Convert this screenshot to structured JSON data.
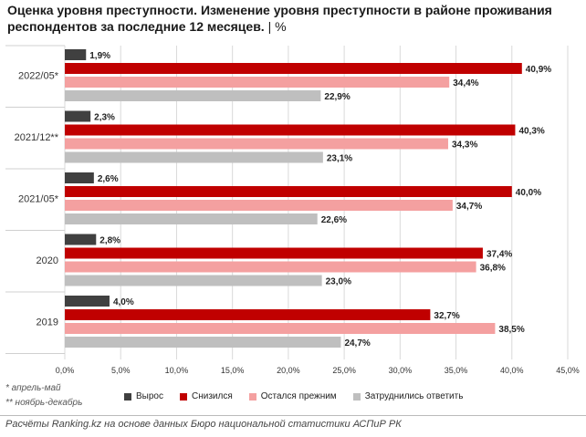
{
  "title_main": "Оценка уровня преступности. Изменение уровня преступности в районе проживания респондентов за последние 12 месяцев.",
  "title_sep": "|",
  "title_unit": "%",
  "notes": {
    "n1": "* апрель-май",
    "n2": "** ноябрь-декабрь"
  },
  "source": "Расчёты Ranking.kz на основе данных Бюро национальной статистики АСПиР РК",
  "chart_data": {
    "type": "bar",
    "orientation": "horizontal",
    "title": "Оценка уровня преступности. Изменение уровня преступности в районе проживания респондентов за последние 12 месяцев. | %",
    "categories": [
      "2022/05*",
      "2021/12**",
      "2021/05*",
      "2020",
      "2019"
    ],
    "series": [
      {
        "name": "Вырос",
        "color": "#404040",
        "values": [
          1.9,
          2.3,
          2.6,
          2.8,
          4.0
        ]
      },
      {
        "name": "Снизился",
        "color": "#c00000",
        "values": [
          40.9,
          40.3,
          40.0,
          37.4,
          32.7
        ]
      },
      {
        "name": "Остался прежним",
        "color": "#f4a0a0",
        "values": [
          34.4,
          34.3,
          34.7,
          36.8,
          38.5
        ]
      },
      {
        "name": "Затруднились ответить",
        "color": "#bfbfbf",
        "values": [
          22.9,
          23.1,
          22.6,
          23.0,
          24.7
        ]
      }
    ],
    "xlim": [
      0,
      45
    ],
    "xticks": [
      "0,0%",
      "5,0%",
      "10,0%",
      "15,0%",
      "20,0%",
      "25,0%",
      "30,0%",
      "35,0%",
      "40,0%",
      "45,0%"
    ],
    "grid": true,
    "legend": "bottom"
  }
}
